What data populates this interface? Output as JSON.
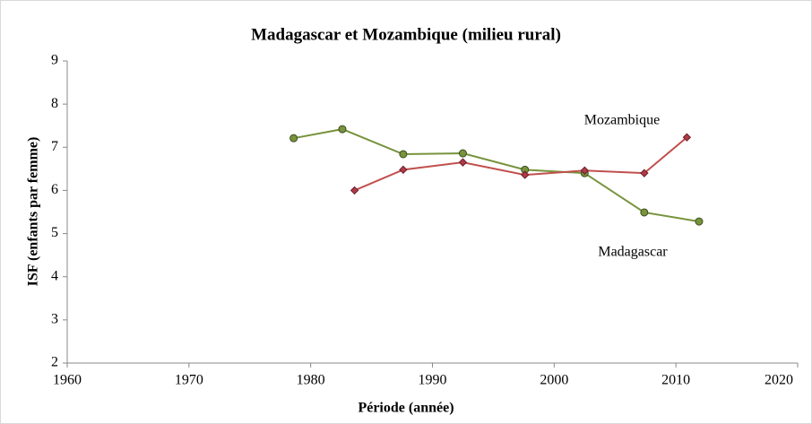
{
  "chart_data": {
    "type": "line",
    "title": "Madagascar et Mozambique (milieu rural)",
    "x_label": "Période (année)",
    "y_label": "ISF (enfants par femme)",
    "xlim": [
      1960,
      2020
    ],
    "xticks": [
      1960,
      1970,
      1980,
      1990,
      2000,
      2010,
      2020
    ],
    "ylim": [
      2,
      9
    ],
    "yticks": [
      2,
      3,
      4,
      5,
      6,
      7,
      8,
      9
    ],
    "grid": false,
    "series": [
      {
        "name": "Madagascar",
        "color": "#77933c",
        "marker": "circle",
        "x": [
          1978.6,
          1982.6,
          1987.6,
          1992.5,
          1997.6,
          2002.5,
          2007.4,
          2011.9
        ],
        "values": [
          7.21,
          7.42,
          6.84,
          6.86,
          6.48,
          6.4,
          5.49,
          5.28
        ]
      },
      {
        "name": "Mozambique",
        "color": "#c0504d",
        "marker": "diamond",
        "x": [
          1983.6,
          1987.6,
          1992.5,
          1997.6,
          2002.5,
          2007.4,
          2010.9
        ],
        "values": [
          6.0,
          6.48,
          6.65,
          6.36,
          6.46,
          6.4,
          7.23
        ]
      }
    ]
  }
}
